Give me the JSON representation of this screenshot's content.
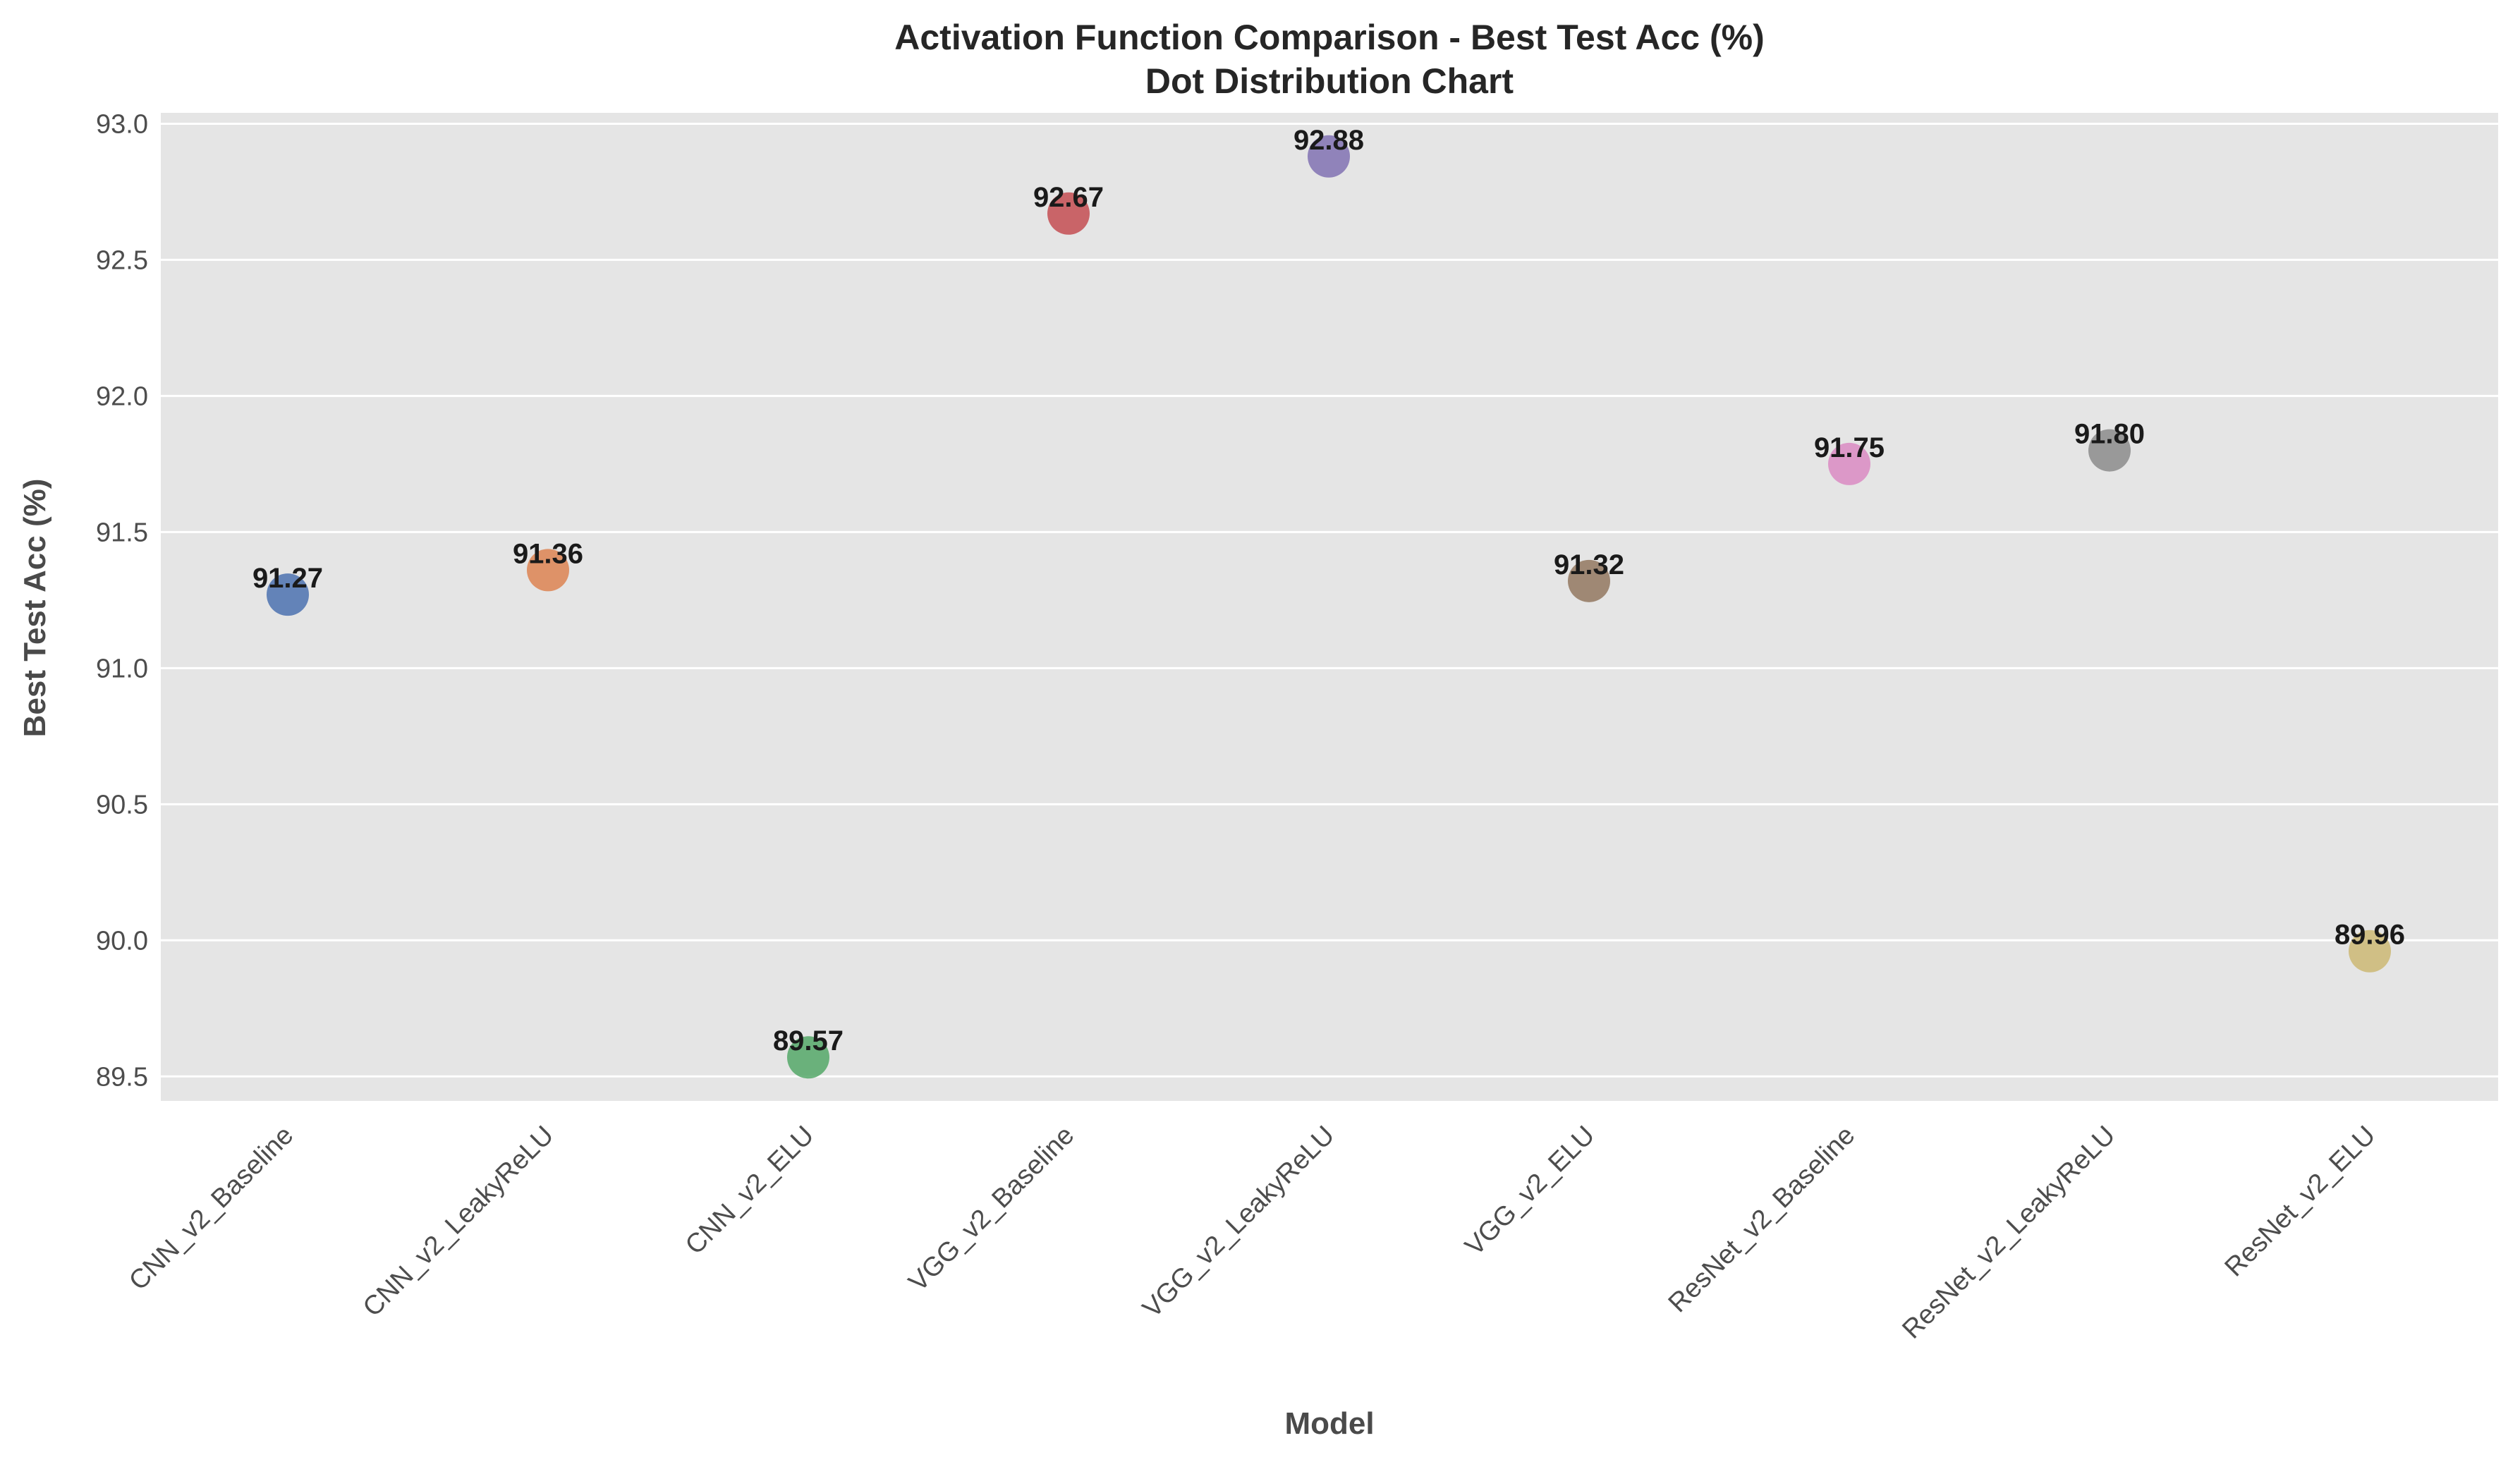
{
  "chart_data": {
    "type": "scatter",
    "title": "Activation Function Comparison - Best Test Acc (%)",
    "subtitle": "Dot Distribution Chart",
    "xlabel": "Model",
    "ylabel": "Best Test Acc (%)",
    "categories": [
      "CNN_v2_Baseline",
      "CNN_v2_LeakyReLU",
      "CNN_v2_ELU",
      "VGG_v2_Baseline",
      "VGG_v2_LeakyReLU",
      "VGG_v2_ELU",
      "ResNet_v2_Baseline",
      "ResNet_v2_LeakyReLU",
      "ResNet_v2_ELU"
    ],
    "values": [
      91.27,
      91.36,
      89.57,
      92.67,
      92.88,
      91.32,
      91.75,
      91.8,
      89.96
    ],
    "data_labels": [
      "91.27",
      "91.36",
      "89.57",
      "92.67",
      "92.88",
      "91.32",
      "91.75",
      "91.80",
      "89.96"
    ],
    "colors": [
      "#4c72b0",
      "#dd8452",
      "#55a868",
      "#c44e52",
      "#8172b3",
      "#937860",
      "#da8bc3",
      "#8c8c8c",
      "#ccb974"
    ],
    "ylim": [
      89.41,
      93.04
    ],
    "yticks": [
      89.5,
      90.0,
      90.5,
      91.0,
      91.5,
      92.0,
      92.5,
      93.0
    ],
    "ytick_labels": [
      "89.5",
      "90.0",
      "90.5",
      "91.0",
      "91.5",
      "92.0",
      "92.5",
      "93.0"
    ],
    "grid": true,
    "legend": "none",
    "background": "#e5e5e5"
  }
}
